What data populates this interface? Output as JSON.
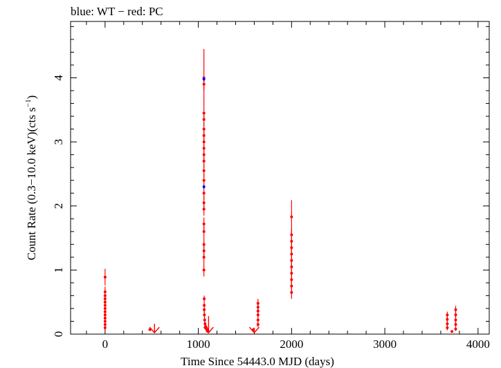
{
  "chart_data": {
    "type": "scatter",
    "title": "blue: WT − red: PC",
    "xlabel": "Time Since 54443.0 MJD (days)",
    "ylabel_main": "Count Rate (0.3−10.0 keV)(cts s",
    "ylabel_sup": "−1",
    "ylabel_close": ")",
    "xlim": [
      -370,
      4120
    ],
    "ylim": [
      0,
      4.88
    ],
    "xticks": [
      0,
      1000,
      2000,
      3000,
      4000
    ],
    "xtick_labels": [
      "0",
      "1000",
      "2000",
      "3000",
      "4000"
    ],
    "yticks": [
      0,
      1,
      2,
      3,
      4
    ],
    "ytick_labels": [
      "0",
      "1",
      "2",
      "3",
      "4"
    ],
    "grid": false,
    "colors": {
      "WT": "#0000ff",
      "PC": "#ff0000",
      "axis": "#000000"
    },
    "series": [
      {
        "name": "PC",
        "points": [
          {
            "x": 0,
            "y": 0.89,
            "e": 0.13
          },
          {
            "x": 0,
            "y": 0.66,
            "e": 0.08
          },
          {
            "x": 0,
            "y": 0.6,
            "e": 0.08
          },
          {
            "x": 0,
            "y": 0.55,
            "e": 0.07
          },
          {
            "x": 0,
            "y": 0.5,
            "e": 0.07
          },
          {
            "x": 0,
            "y": 0.45,
            "e": 0.07
          },
          {
            "x": 0,
            "y": 0.4,
            "e": 0.06
          },
          {
            "x": 0,
            "y": 0.35,
            "e": 0.06
          },
          {
            "x": 0,
            "y": 0.3,
            "e": 0.06
          },
          {
            "x": 0,
            "y": 0.25,
            "e": 0.05
          },
          {
            "x": 0,
            "y": 0.2,
            "e": 0.05
          },
          {
            "x": 0,
            "y": 0.15,
            "e": 0.05
          },
          {
            "x": 0,
            "y": 0.1,
            "e": 0.04
          },
          {
            "x": 480,
            "y": 0.07,
            "e": 0.02
          },
          {
            "x": 1060,
            "y": 4.0,
            "e": 0.45
          },
          {
            "x": 1060,
            "y": 3.9,
            "e": 0.1
          },
          {
            "x": 1060,
            "y": 3.45,
            "e": 0.1
          },
          {
            "x": 1060,
            "y": 3.35,
            "e": 0.1
          },
          {
            "x": 1060,
            "y": 3.2,
            "e": 0.1
          },
          {
            "x": 1060,
            "y": 3.1,
            "e": 0.1
          },
          {
            "x": 1060,
            "y": 3.0,
            "e": 0.1
          },
          {
            "x": 1060,
            "y": 2.9,
            "e": 0.1
          },
          {
            "x": 1060,
            "y": 2.8,
            "e": 0.1
          },
          {
            "x": 1060,
            "y": 2.7,
            "e": 0.1
          },
          {
            "x": 1060,
            "y": 2.55,
            "e": 0.1
          },
          {
            "x": 1060,
            "y": 2.4,
            "e": 0.1
          },
          {
            "x": 1060,
            "y": 2.2,
            "e": 0.1
          },
          {
            "x": 1060,
            "y": 2.05,
            "e": 0.1
          },
          {
            "x": 1060,
            "y": 1.95,
            "e": 0.1
          },
          {
            "x": 1060,
            "y": 1.72,
            "e": 0.1
          },
          {
            "x": 1060,
            "y": 1.6,
            "e": 0.1
          },
          {
            "x": 1060,
            "y": 1.4,
            "e": 0.1
          },
          {
            "x": 1060,
            "y": 1.3,
            "e": 0.1
          },
          {
            "x": 1060,
            "y": 1.2,
            "e": 0.1
          },
          {
            "x": 1060,
            "y": 1.0,
            "e": 0.1
          },
          {
            "x": 1063,
            "y": 0.55,
            "e": 0.05
          },
          {
            "x": 1063,
            "y": 0.45,
            "e": 0.05
          },
          {
            "x": 1063,
            "y": 0.38,
            "e": 0.05
          },
          {
            "x": 1065,
            "y": 0.3,
            "e": 0.05
          },
          {
            "x": 1068,
            "y": 0.22,
            "e": 0.04
          },
          {
            "x": 1072,
            "y": 0.16,
            "e": 0.03
          },
          {
            "x": 1078,
            "y": 0.12,
            "e": 0.03
          },
          {
            "x": 1085,
            "y": 0.1,
            "e": 0.03
          },
          {
            "x": 1090,
            "y": 0.08,
            "e": 0.02
          },
          {
            "x": 1095,
            "y": 0.05,
            "e": 0.02
          },
          {
            "x": 1100,
            "y": 0.06,
            "e": 0.02
          },
          {
            "x": 1105,
            "y": 0.04,
            "e": 0.02
          },
          {
            "x": 1590,
            "y": 0.07,
            "e": 0.02
          },
          {
            "x": 1640,
            "y": 0.48,
            "e": 0.07
          },
          {
            "x": 1640,
            "y": 0.42,
            "e": 0.06
          },
          {
            "x": 1640,
            "y": 0.36,
            "e": 0.06
          },
          {
            "x": 1640,
            "y": 0.3,
            "e": 0.05
          },
          {
            "x": 1640,
            "y": 0.22,
            "e": 0.05
          },
          {
            "x": 1640,
            "y": 0.15,
            "e": 0.04
          },
          {
            "x": 2000,
            "y": 1.83,
            "e": 0.26
          },
          {
            "x": 2000,
            "y": 1.55,
            "e": 0.1
          },
          {
            "x": 2000,
            "y": 1.45,
            "e": 0.1
          },
          {
            "x": 2000,
            "y": 1.35,
            "e": 0.1
          },
          {
            "x": 2000,
            "y": 1.25,
            "e": 0.1
          },
          {
            "x": 2000,
            "y": 1.15,
            "e": 0.1
          },
          {
            "x": 2000,
            "y": 1.05,
            "e": 0.1
          },
          {
            "x": 2000,
            "y": 0.95,
            "e": 0.1
          },
          {
            "x": 2000,
            "y": 0.85,
            "e": 0.1
          },
          {
            "x": 2000,
            "y": 0.75,
            "e": 0.1
          },
          {
            "x": 2000,
            "y": 0.65,
            "e": 0.1
          },
          {
            "x": 3670,
            "y": 0.3,
            "e": 0.05
          },
          {
            "x": 3670,
            "y": 0.23,
            "e": 0.05
          },
          {
            "x": 3670,
            "y": 0.16,
            "e": 0.04
          },
          {
            "x": 3670,
            "y": 0.1,
            "e": 0.04
          },
          {
            "x": 3720,
            "y": 0.04,
            "e": 0.02
          },
          {
            "x": 3760,
            "y": 0.38,
            "e": 0.06
          },
          {
            "x": 3760,
            "y": 0.3,
            "e": 0.05
          },
          {
            "x": 3760,
            "y": 0.22,
            "e": 0.05
          },
          {
            "x": 3760,
            "y": 0.15,
            "e": 0.04
          },
          {
            "x": 3760,
            "y": 0.08,
            "e": 0.03
          }
        ],
        "upper_limits": [
          {
            "x": 530,
            "y": 0.16
          },
          {
            "x": 1110,
            "y": 0.28
          },
          {
            "x": 1600,
            "y": 0.1
          }
        ]
      },
      {
        "name": "WT",
        "points": [
          {
            "x": 1060,
            "y": 3.98,
            "e": 0.03
          },
          {
            "x": 1060,
            "y": 2.3,
            "e": 0.03
          }
        ],
        "upper_limits": []
      }
    ]
  }
}
